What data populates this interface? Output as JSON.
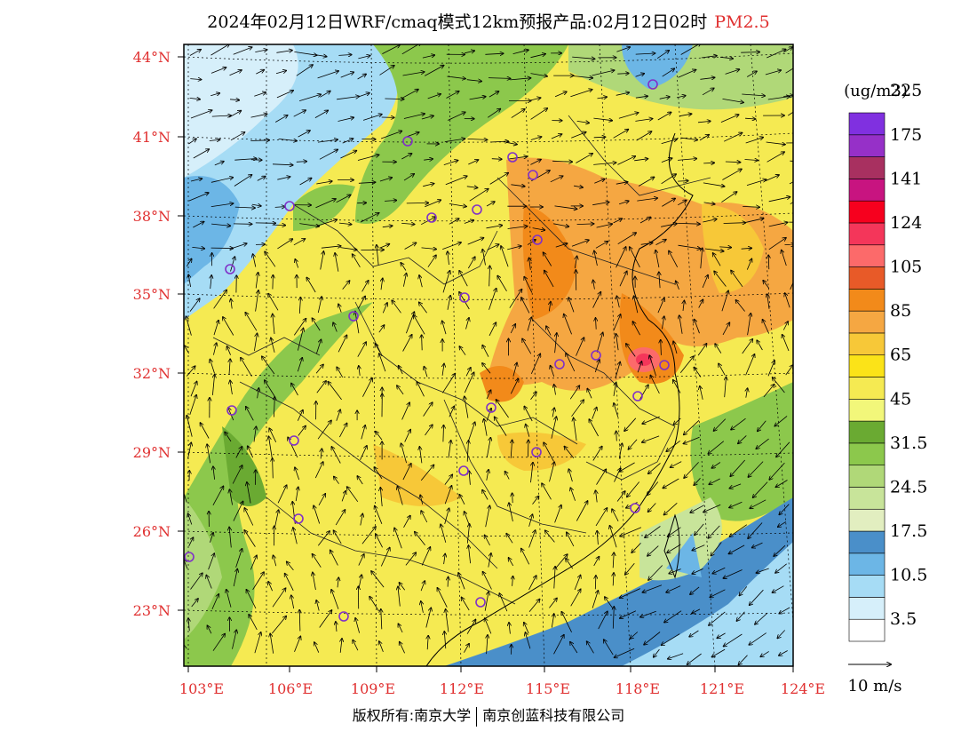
{
  "title": {
    "main": "2024年02月12日WRF/cmaq模式12km预报产品:02月12日02时",
    "pollutant": "PM2.5"
  },
  "map": {
    "lat_labels": [
      "44°N",
      "41°N",
      "38°N",
      "35°N",
      "32°N",
      "29°N",
      "26°N",
      "23°N"
    ],
    "lon_labels": [
      "103°E",
      "106°E",
      "109°E",
      "112°E",
      "115°E",
      "118°E",
      "121°E",
      "124°E"
    ],
    "colorbar": {
      "unit": "(ug/m3)",
      "colors": [
        "#ffffff",
        "#d6effa",
        "#a6dcf5",
        "#6cb6e6",
        "#4a8fc9",
        "#e2eec0",
        "#c8e49a",
        "#b0d878",
        "#8cc84c",
        "#6aaa32",
        "#f2f77a",
        "#f5ea52",
        "#fbe318",
        "#f7c838",
        "#f5a742",
        "#f28a1a",
        "#e85a28",
        "#fc6a6a",
        "#f4365a",
        "#f6001e",
        "#c81480",
        "#a83060",
        "#9630c8",
        "#8030e0"
      ],
      "labels": [
        "3.5",
        "10.5",
        "17.5",
        "24.5",
        "31.5",
        "45",
        "65",
        "85",
        "105",
        "124",
        "141",
        "175",
        "225"
      ]
    },
    "wind_legend": "10 m/s",
    "station_count": 28
  },
  "footer": {
    "left": "版权所有:南京大学",
    "right": "南京创蓝科技有限公司"
  }
}
